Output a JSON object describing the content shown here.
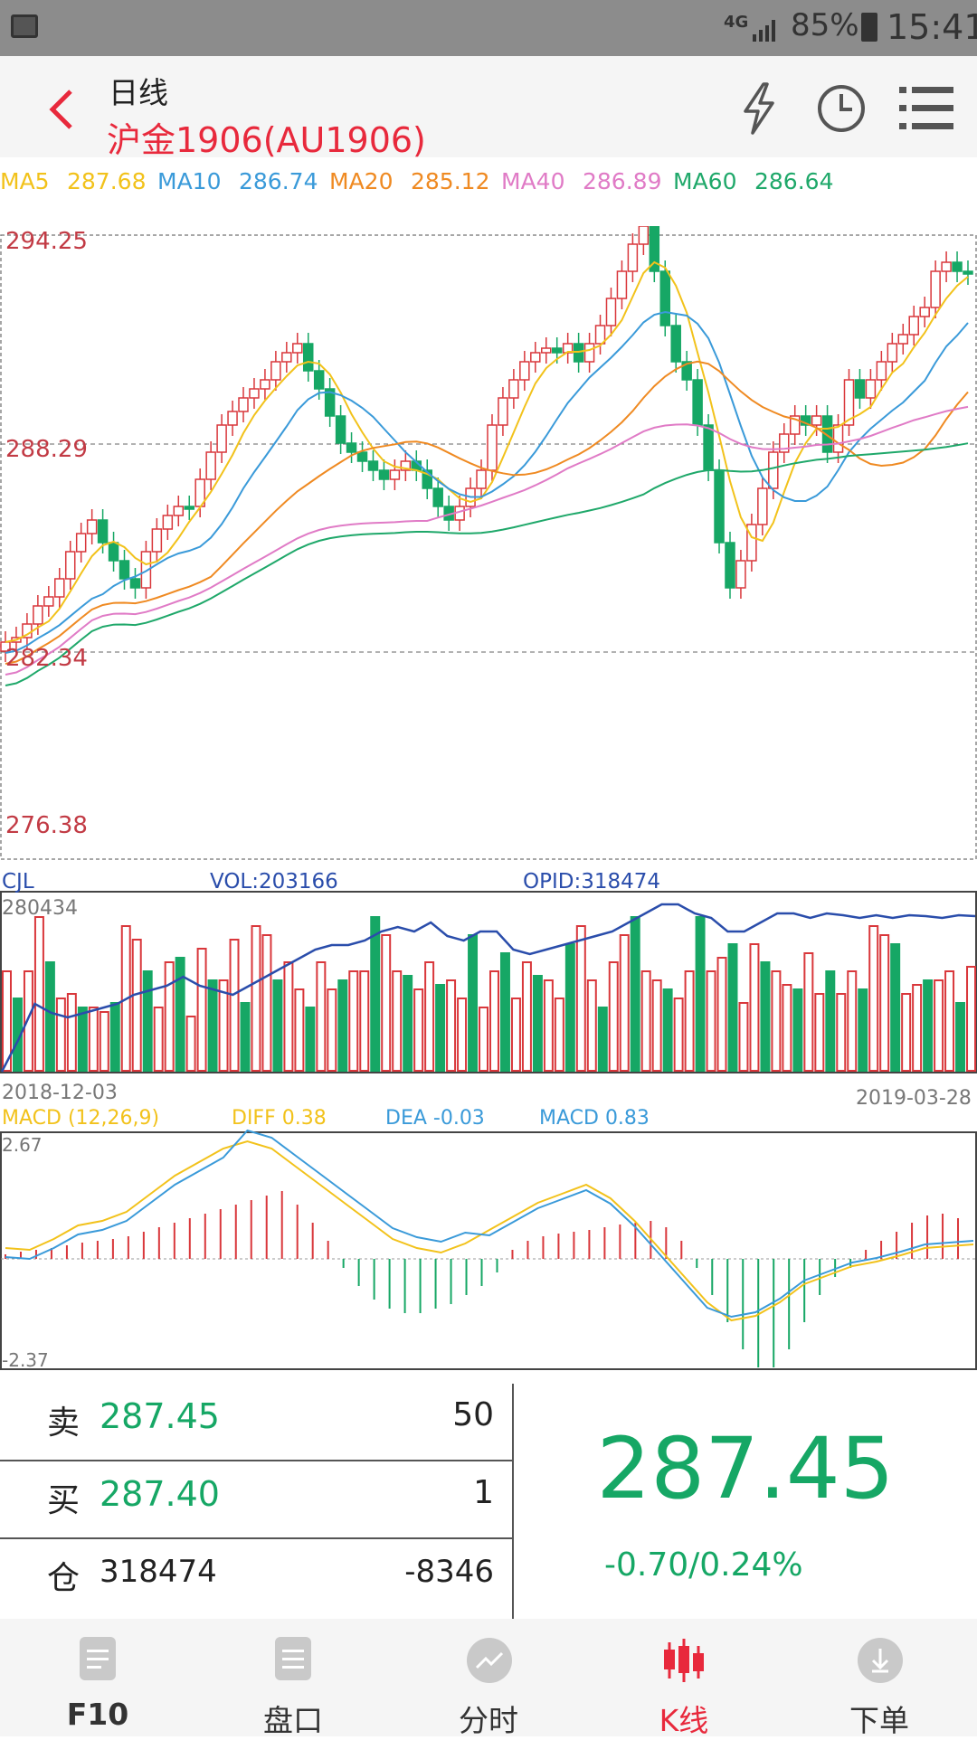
{
  "status_bar": {
    "network": "4G",
    "battery": "85%",
    "time": "15:41"
  },
  "header": {
    "title": "日线",
    "subtitle": "沪金1906(AU1906)"
  },
  "ma_legend": [
    {
      "label": "MA5",
      "value": "287.68",
      "color": "#f2c21b"
    },
    {
      "label": "MA10",
      "value": "286.74",
      "color": "#3a9ad9"
    },
    {
      "label": "MA20",
      "value": "285.12",
      "color": "#ef8a22"
    },
    {
      "label": "MA40",
      "value": "286.89",
      "color": "#e07bc6"
    },
    {
      "label": "MA60",
      "value": "286.64",
      "color": "#1fa86a"
    }
  ],
  "price_axis": {
    "top": "294.25",
    "mid": "288.29",
    "low": "282.34",
    "bottom": "276.38"
  },
  "volume": {
    "label": "CJL",
    "vol": "VOL:203166",
    "opid": "OPID:318474",
    "max": "280434",
    "start_date": "2018-12-03",
    "end_date": "2019-03-28"
  },
  "macd": {
    "label": "MACD (12,26,9)",
    "diff": "DIFF 0.38",
    "dea": "DEA -0.03",
    "macd": "MACD 0.83",
    "max": "2.67",
    "min": "-2.37"
  },
  "quote": {
    "rows": [
      {
        "label": "卖",
        "price": "287.45",
        "qty": "50"
      },
      {
        "label": "买",
        "price": "287.40",
        "qty": "1"
      },
      {
        "label": "仓",
        "price": "318474",
        "qty": "-8346"
      }
    ],
    "last_price": "287.45",
    "change": "-0.70/0.24%"
  },
  "nav": [
    {
      "label": "F10",
      "icon": "document-icon",
      "active": false
    },
    {
      "label": "盘口",
      "icon": "list-icon",
      "active": false
    },
    {
      "label": "分时",
      "icon": "trend-icon",
      "active": false
    },
    {
      "label": "K线",
      "icon": "candlestick-icon",
      "active": true
    },
    {
      "label": "下单",
      "icon": "download-icon",
      "active": false
    }
  ],
  "colors": {
    "up": "#d9373b",
    "down": "#16a765",
    "accent": "#e8293c",
    "axis_text": "#c23b45"
  },
  "chart_data": {
    "type": "candlestick",
    "y_range": [
      276.38,
      294.25
    ],
    "date_range": [
      "2018-12-03",
      "2019-03-28"
    ],
    "last_close": 287.45,
    "volume_max": 280434,
    "macd_range": [
      -2.37,
      2.67
    ]
  }
}
